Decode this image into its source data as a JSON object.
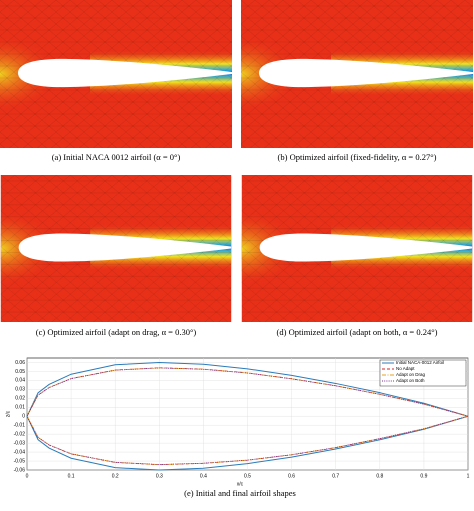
{
  "panels": [
    {
      "caption": "(a) Initial NACA 0012 airfoil (α = 0°)"
    },
    {
      "caption": "(b) Optimized airfoil (fixed-fidelity, α = 0.27°)"
    },
    {
      "caption": "(c) Optimized airfoil (adapt on drag, α = 0.30°)"
    },
    {
      "caption": "(d) Optimized airfoil (adapt on both, α = 0.24°)"
    }
  ],
  "chart_data": {
    "type": "line",
    "caption": "(e) Initial and final airfoil shapes",
    "xlabel": "x/c",
    "ylabel": "z/c",
    "x": [
      1,
      0.9,
      0.8,
      0.7,
      0.6,
      0.5,
      0.4,
      0.3,
      0.2,
      0.1,
      0.05,
      0.025,
      0,
      0.025,
      0.05,
      0.1,
      0.2,
      0.3,
      0.4,
      0.5,
      0.6,
      0.7,
      0.8,
      0.9,
      1
    ],
    "series": [
      {
        "name": "Initial NACA-0012 Airfoil",
        "color": "#2b7bb9",
        "style": "solid",
        "values": [
          0,
          0.0145,
          0.0263,
          0.0366,
          0.0456,
          0.0529,
          0.058,
          0.06,
          0.0574,
          0.0469,
          0.0355,
          0.0261,
          0,
          -0.0261,
          -0.0355,
          -0.0469,
          -0.0574,
          -0.06,
          -0.058,
          -0.0529,
          -0.0456,
          -0.0366,
          -0.0263,
          -0.0145,
          0
        ]
      },
      {
        "name": "No Adapt",
        "color": "#d62728",
        "style": "dashed",
        "values": [
          0,
          0.0136,
          0.0246,
          0.0341,
          0.0419,
          0.0484,
          0.0526,
          0.0541,
          0.0516,
          0.0421,
          0.0321,
          0.0236,
          0,
          -0.0236,
          -0.0321,
          -0.0421,
          -0.0516,
          -0.0541,
          -0.0526,
          -0.0491,
          -0.0431,
          -0.0351,
          -0.0251,
          -0.0141,
          0
        ]
      },
      {
        "name": "Adapt on Drag",
        "color": "#e8a020",
        "style": "dashdot",
        "values": [
          0,
          0.0135,
          0.0245,
          0.034,
          0.0418,
          0.0483,
          0.0525,
          0.054,
          0.0515,
          0.042,
          0.032,
          0.0235,
          0,
          -0.0235,
          -0.032,
          -0.042,
          -0.0515,
          -0.054,
          -0.0525,
          -0.049,
          -0.043,
          -0.035,
          -0.025,
          -0.014,
          0
        ]
      },
      {
        "name": "Adapt on Both",
        "color": "#7e2f8e",
        "style": "dotted",
        "values": [
          0,
          0.0134,
          0.0244,
          0.0339,
          0.0417,
          0.0482,
          0.0524,
          0.0539,
          0.0514,
          0.0419,
          0.0319,
          0.0234,
          0,
          -0.0234,
          -0.0319,
          -0.0419,
          -0.0514,
          -0.0539,
          -0.0524,
          -0.0489,
          -0.0429,
          -0.0349,
          -0.0249,
          -0.0139,
          0
        ]
      }
    ],
    "xlim": [
      0,
      1
    ],
    "xticks": [
      0,
      0.1,
      0.2,
      0.3,
      0.4,
      0.5,
      0.6,
      0.7,
      0.8,
      0.9,
      1
    ],
    "ylim": [
      -0.06,
      0.065
    ],
    "yticks": [
      -0.06,
      -0.05,
      -0.04,
      -0.03,
      -0.02,
      -0.01,
      0,
      0.01,
      0.02,
      0.03,
      0.04,
      0.05,
      0.06
    ],
    "grid": true,
    "legend": "top-right"
  }
}
